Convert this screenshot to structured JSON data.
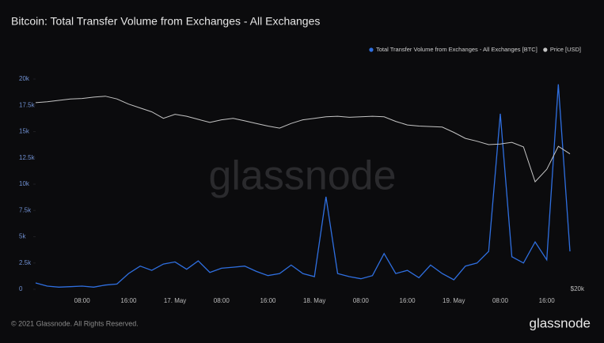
{
  "chart_data": {
    "type": "line",
    "title": "Bitcoin: Total Transfer Volume from Exchanges - All Exchanges",
    "categories": [
      null,
      null,
      null,
      null,
      "08:00",
      null,
      null,
      null,
      "16:00",
      null,
      null,
      null,
      "17. May",
      null,
      null,
      null,
      "08:00",
      null,
      null,
      null,
      "16:00",
      null,
      null,
      null,
      "18. May",
      null,
      null,
      null,
      "08:00",
      null,
      null,
      null,
      "16:00",
      null,
      null,
      null,
      "19. May",
      null,
      null,
      null,
      "08:00",
      null,
      null,
      null,
      "16:00",
      null,
      null
    ],
    "series": [
      {
        "name": "Total Transfer Volume from Exchanges - All Exchanges [BTC]",
        "color": "#2f6fe0",
        "values": [
          600,
          300,
          200,
          250,
          300,
          200,
          400,
          500,
          1500,
          2200,
          1800,
          2400,
          2600,
          1900,
          2700,
          1600,
          2000,
          2100,
          2200,
          1700,
          1300,
          1500,
          2300,
          1500,
          1200,
          8800,
          1500,
          1200,
          1000,
          1300,
          3400,
          1500,
          1800,
          1100,
          2300,
          1500,
          900,
          2200,
          2500,
          3600,
          16700,
          3100,
          2500,
          4500,
          2800,
          19500,
          3600
        ]
      },
      {
        "name": "Price [USD]",
        "color": "#c4c4c4",
        "axis": "y2",
        "values": [
          46700,
          46900,
          47200,
          47500,
          47600,
          47900,
          48100,
          47500,
          46400,
          45600,
          44800,
          43500,
          44300,
          43900,
          43300,
          42700,
          43200,
          43500,
          43000,
          42500,
          42000,
          41600,
          42500,
          43200,
          43500,
          43800,
          43900,
          43700,
          43800,
          43900,
          43800,
          42900,
          42200,
          42000,
          41900,
          41800,
          40800,
          39700,
          39200,
          38600,
          38700,
          39000,
          38200,
          32600,
          34500,
          38300,
          37000
        ]
      }
    ],
    "ylim": [
      0,
      20000
    ],
    "yticks": [
      0,
      {
        "value": 2500,
        "label": "2.5k"
      },
      {
        "value": 5000,
        "label": "5k"
      },
      {
        "value": 7500,
        "label": "7.5k"
      },
      {
        "value": 10000,
        "label": "10k"
      },
      {
        "value": 12500,
        "label": "12.5k"
      },
      {
        "value": 15000,
        "label": "15k"
      },
      {
        "value": 17500,
        "label": "17.5k"
      },
      {
        "value": 20000,
        "label": "20k"
      }
    ],
    "y2lim": [
      20000,
      52000
    ],
    "y2ticks": [
      {
        "value": 20000,
        "label": "$20k"
      }
    ],
    "y2log": true,
    "grid": false,
    "legend": "top-right"
  },
  "watermark": "glassnode",
  "footer": "© 2021 Glassnode. All Rights Reserved.",
  "logo": "glassnode"
}
